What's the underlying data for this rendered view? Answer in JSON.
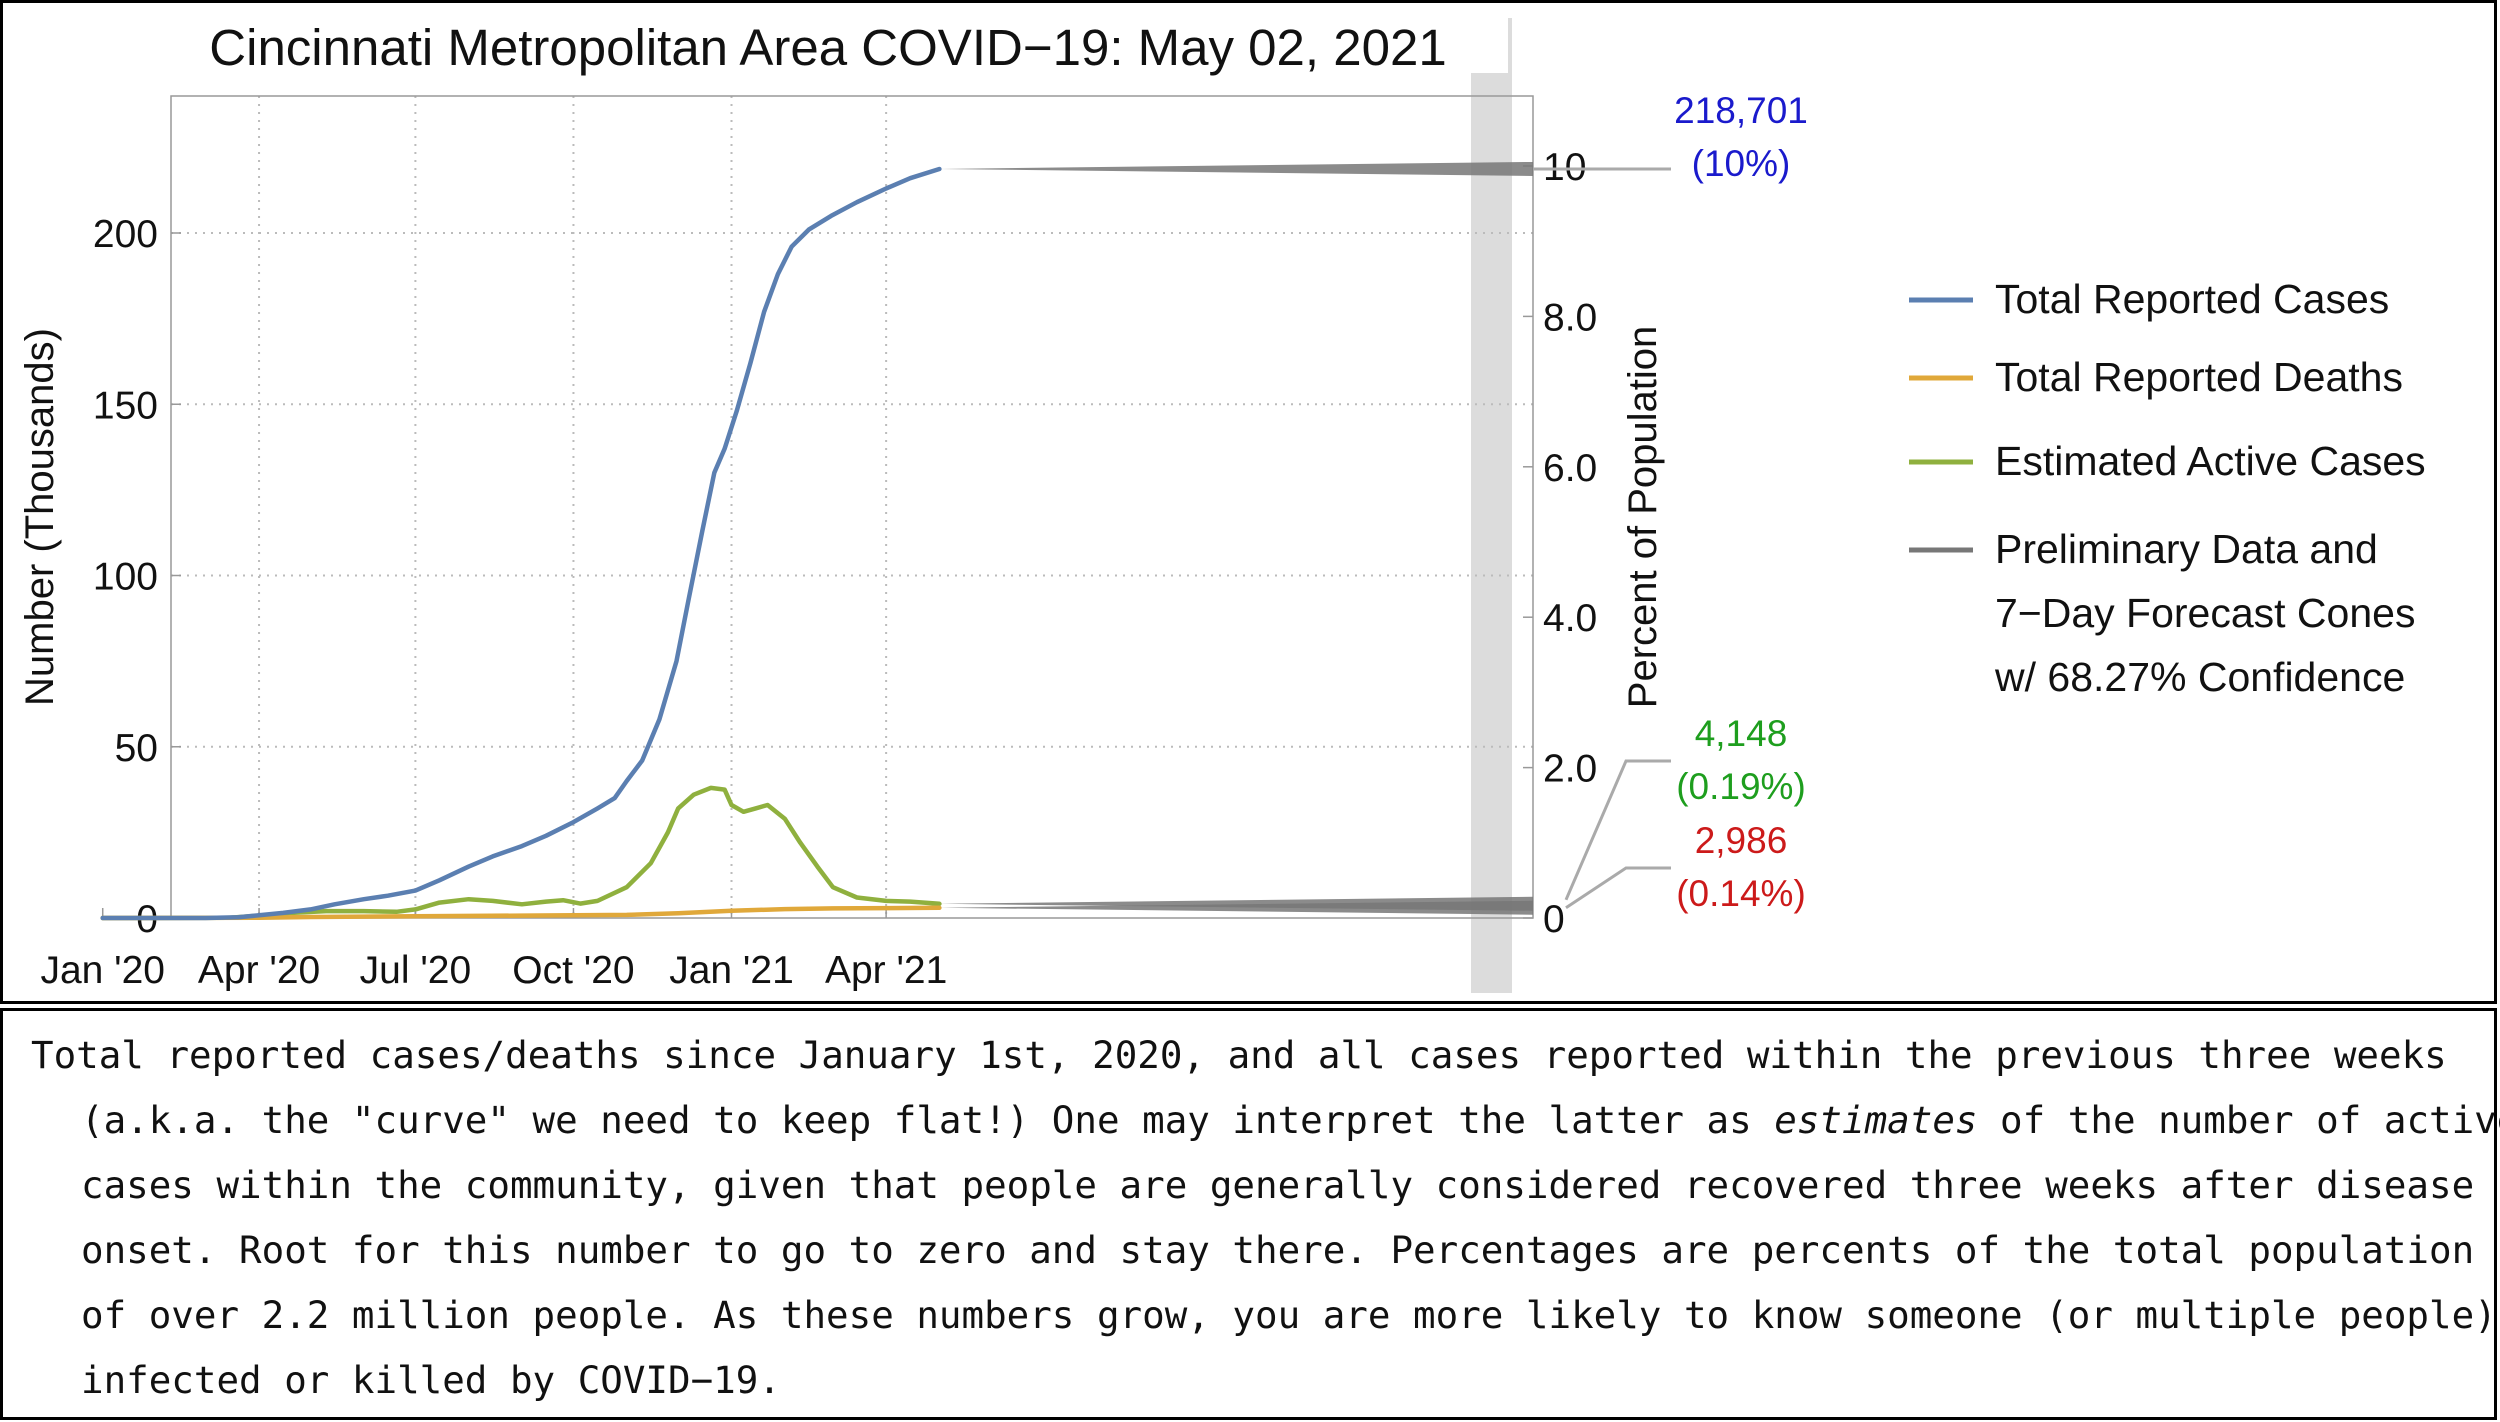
{
  "chart_data": {
    "type": "line",
    "title": "Cincinnati Metropolitan Area COVID−19: May 02, 2021",
    "ylabel": "Number (Thousands)",
    "y2label": "Percent of Population",
    "ylim": [
      0,
      240
    ],
    "y2lim": [
      0,
      11
    ],
    "x_ticks": [
      "Jan '20",
      "Apr '20",
      "Jul '20",
      "Oct '20",
      "Jan '21",
      "Apr '21"
    ],
    "y_ticks": [
      "0",
      "50",
      "100",
      "150",
      "200"
    ],
    "y2_ticks": [
      "0",
      "2.0",
      "4.0",
      "6.0",
      "8.0",
      "10"
    ],
    "grid": true,
    "legend_position": "right",
    "preliminary_shading": "last 2 weeks",
    "series": [
      {
        "name": "Total Reported Cases",
        "color": "#5b7fb1",
        "points": [
          [
            "2020-01-01",
            0
          ],
          [
            "2020-03-01",
            0
          ],
          [
            "2020-03-20",
            0.2
          ],
          [
            "2020-04-01",
            0.8
          ],
          [
            "2020-04-15",
            1.5
          ],
          [
            "2020-05-01",
            2.5
          ],
          [
            "2020-05-15",
            4
          ],
          [
            "2020-06-01",
            5.5
          ],
          [
            "2020-06-15",
            6.5
          ],
          [
            "2020-07-01",
            8
          ],
          [
            "2020-07-15",
            11
          ],
          [
            "2020-08-01",
            15
          ],
          [
            "2020-08-15",
            18
          ],
          [
            "2020-09-01",
            21
          ],
          [
            "2020-09-15",
            24
          ],
          [
            "2020-10-01",
            28
          ],
          [
            "2020-10-15",
            32
          ],
          [
            "2020-10-25",
            35
          ],
          [
            "2020-11-01",
            40
          ],
          [
            "2020-11-10",
            46
          ],
          [
            "2020-11-20",
            58
          ],
          [
            "2020-11-30",
            75
          ],
          [
            "2020-12-07",
            93
          ],
          [
            "2020-12-15",
            113
          ],
          [
            "2020-12-22",
            130
          ],
          [
            "2020-12-28",
            137
          ],
          [
            "2021-01-04",
            148
          ],
          [
            "2021-01-12",
            162
          ],
          [
            "2021-01-20",
            177
          ],
          [
            "2021-01-28",
            188
          ],
          [
            "2021-02-05",
            196
          ],
          [
            "2021-02-15",
            201
          ],
          [
            "2021-02-28",
            205
          ],
          [
            "2021-03-15",
            209
          ],
          [
            "2021-04-01",
            213
          ],
          [
            "2021-04-15",
            216
          ],
          [
            "2021-05-02",
            218.7
          ]
        ]
      },
      {
        "name": "Total Reported Deaths",
        "color": "#e0a83a",
        "points": [
          [
            "2020-01-01",
            0
          ],
          [
            "2020-04-01",
            0.1
          ],
          [
            "2020-05-01",
            0.3
          ],
          [
            "2020-07-01",
            0.5
          ],
          [
            "2020-09-01",
            0.7
          ],
          [
            "2020-11-01",
            0.9
          ],
          [
            "2020-12-01",
            1.4
          ],
          [
            "2021-01-01",
            2.1
          ],
          [
            "2021-02-01",
            2.6
          ],
          [
            "2021-03-01",
            2.8
          ],
          [
            "2021-04-01",
            2.9
          ],
          [
            "2021-05-02",
            2.986
          ]
        ]
      },
      {
        "name": "Estimated Active Cases",
        "color": "#8fb03e",
        "points": [
          [
            "2020-01-01",
            0
          ],
          [
            "2020-03-15",
            0.1
          ],
          [
            "2020-04-01",
            0.7
          ],
          [
            "2020-04-20",
            1.5
          ],
          [
            "2020-05-10",
            2
          ],
          [
            "2020-06-01",
            2
          ],
          [
            "2020-06-20",
            1.8
          ],
          [
            "2020-07-01",
            2.5
          ],
          [
            "2020-07-15",
            4.5
          ],
          [
            "2020-08-01",
            5.5
          ],
          [
            "2020-08-15",
            5
          ],
          [
            "2020-09-01",
            4
          ],
          [
            "2020-09-15",
            4.8
          ],
          [
            "2020-09-25",
            5.2
          ],
          [
            "2020-10-05",
            4.2
          ],
          [
            "2020-10-15",
            5
          ],
          [
            "2020-11-01",
            9
          ],
          [
            "2020-11-15",
            16
          ],
          [
            "2020-11-25",
            25
          ],
          [
            "2020-12-01",
            32
          ],
          [
            "2020-12-10",
            36
          ],
          [
            "2020-12-20",
            38
          ],
          [
            "2020-12-28",
            37.5
          ],
          [
            "2021-01-01",
            33
          ],
          [
            "2021-01-08",
            31
          ],
          [
            "2021-01-15",
            32
          ],
          [
            "2021-01-22",
            33
          ],
          [
            "2021-02-01",
            29
          ],
          [
            "2021-02-10",
            22
          ],
          [
            "2021-02-20",
            15
          ],
          [
            "2021-03-01",
            9
          ],
          [
            "2021-03-15",
            6
          ],
          [
            "2021-04-01",
            5
          ],
          [
            "2021-04-15",
            4.8
          ],
          [
            "2021-05-02",
            4.148
          ]
        ]
      }
    ],
    "preliminary_series": {
      "name": "Preliminary Data and 7−Day Forecast Cones w/ 68.27% Confidence",
      "color": "#777777"
    },
    "end_labels": [
      {
        "value": "218,701",
        "percent": "(10%)",
        "color": "#1a1acc",
        "y_value": 218.701
      },
      {
        "value": "4,148",
        "percent": "(0.19%)",
        "color": "#1e9e1e",
        "y_value": 4.148
      },
      {
        "value": "2,986",
        "percent": "(0.14%)",
        "color": "#cc1a1a",
        "y_value": 2.986
      }
    ]
  },
  "legend": {
    "items": [
      {
        "label": "Total Reported Cases",
        "color": "#5b7fb1"
      },
      {
        "label": "Total Reported Deaths",
        "color": "#e0a83a"
      },
      {
        "label": "Estimated Active Cases",
        "color": "#8fb03e"
      },
      {
        "label_lines": [
          "Preliminary Data and",
          "7−Day Forecast Cones",
          "w/ 68.27% Confidence"
        ],
        "color": "#777777"
      }
    ]
  },
  "caption": {
    "part1": "Total reported cases/deaths since January 1st, 2020, and all cases reported within the previous three weeks (a.k.a. the \"curve\" we need to keep flat!) One may interpret the latter as ",
    "emphasis": "estimates",
    "part2": " of the number of active cases within the community, given that people are generally considered recovered three weeks after disease onset. Root for this number to go to zero and stay there. Percentages are percents of the total population of over 2.2 million people. As these numbers grow, you are more likely to know someone (or multiple people) infected or killed by COVID−19."
  }
}
